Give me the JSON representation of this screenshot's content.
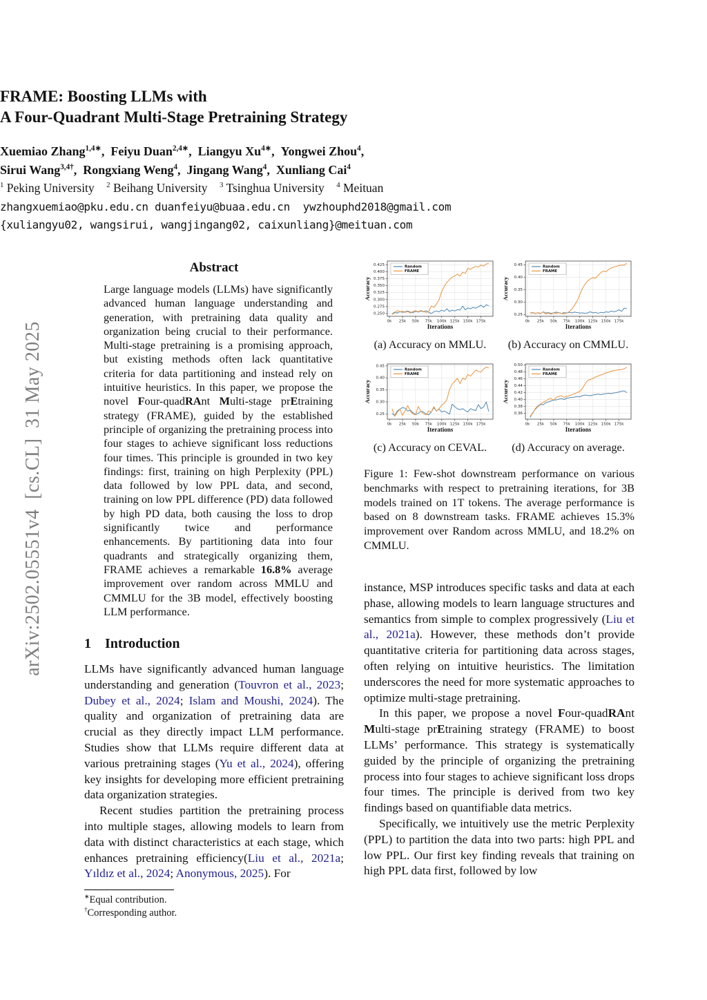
{
  "watermark": "arXiv:2502.05551v4 [cs.CL] 31 May 2025",
  "header": {
    "title_line1": "FRAME: Boosting LLMs with",
    "title_line2": "A Four-Quadrant Multi-Stage Pretraining Strategy",
    "authors_line1": [
      {
        "t": "Xuemiao Zhang"
      },
      {
        "t": "1,4∗",
        "c": "sup"
      },
      {
        "t": ", "
      },
      {
        "t": "Feiyu Duan"
      },
      {
        "t": "2,4∗",
        "c": "sup"
      },
      {
        "t": ", "
      },
      {
        "t": "Liangyu Xu"
      },
      {
        "t": "4∗",
        "c": "sup"
      },
      {
        "t": ", "
      },
      {
        "t": "Yongwei Zhou"
      },
      {
        "t": "4",
        "c": "sup"
      },
      {
        "t": ","
      }
    ],
    "authors_line2": [
      {
        "t": "Sirui Wang"
      },
      {
        "t": "3,4†",
        "c": "sup"
      },
      {
        "t": ", "
      },
      {
        "t": "Rongxiang Weng"
      },
      {
        "t": "4",
        "c": "sup"
      },
      {
        "t": ", "
      },
      {
        "t": "Jingang Wang"
      },
      {
        "t": "4",
        "c": "sup"
      },
      {
        "t": ", "
      },
      {
        "t": "Xunliang Cai"
      },
      {
        "t": "4",
        "c": "sup"
      }
    ],
    "affiliations": [
      {
        "t": "1",
        "c": "sup"
      },
      {
        "t": " Peking University  "
      },
      {
        "t": "2",
        "c": "sup"
      },
      {
        "t": " Beihang University  "
      },
      {
        "t": "3",
        "c": "sup"
      },
      {
        "t": " Tsinghua University  "
      },
      {
        "t": "4",
        "c": "sup"
      },
      {
        "t": " Meituan"
      }
    ],
    "emails_line1": "zhangxuemiao@pku.edu.cn duanfeiyu@buaa.edu.cn  ywzhouphd2018@gmail.com",
    "emails_line2": "{xuliangyu02, wangsirui, wangjingang02, caixunliang}@meituan.com"
  },
  "abstract": {
    "heading": "Abstract",
    "body": [
      {
        "t": "Large language models (LLMs) have significantly advanced human language understanding and generation, with pretraining data quality and organization being crucial to their performance. Multi-stage pretraining is a promising approach, but existing methods often lack quantitative criteria for data partitioning and instead rely on intuitive heuristics. In this paper, we propose the novel "
      },
      {
        "t": "F",
        "c": "b"
      },
      {
        "t": "our-quad"
      },
      {
        "t": "RA",
        "c": "b"
      },
      {
        "t": "nt "
      },
      {
        "t": "M",
        "c": "b"
      },
      {
        "t": "ulti-stage pr"
      },
      {
        "t": "E",
        "c": "b"
      },
      {
        "t": "training strategy (FRAME), guided by the established principle of organizing the pretraining process into four stages to achieve significant loss reductions four times. This principle is grounded in two key findings: first, training on high Perplexity (PPL) data followed by low PPL data, and second, training on low PPL difference (PD) data followed by high PD data, both causing the loss to drop significantly twice and performance enhancements. By partitioning data into four quadrants and strategically organizing them, FRAME achieves a remarkable "
      },
      {
        "t": "16.8%",
        "c": "b"
      },
      {
        "t": " average improvement over random across MMLU and CMMLU for the 3B model, effectively boosting LLM performance."
      }
    ]
  },
  "introduction": {
    "heading": [
      {
        "t": "1"
      },
      {
        "t": "  "
      },
      {
        "t": "Introduction"
      }
    ],
    "p1": [
      {
        "t": "LLMs have significantly advanced human language understanding and generation ("
      },
      {
        "t": "Touvron et al., 2023",
        "c": "link"
      },
      {
        "t": "; "
      },
      {
        "t": "Dubey et al., 2024",
        "c": "link"
      },
      {
        "t": "; "
      },
      {
        "t": "Islam and Moushi, 2024",
        "c": "link"
      },
      {
        "t": "). The quality and organization of pretraining data are crucial as they directly impact LLM performance. Studies show that LLMs require different data at various pretraining stages ("
      },
      {
        "t": "Yu et al., 2024",
        "c": "link"
      },
      {
        "t": "), offering key insights for developing more efficient pretraining data organization strategies."
      }
    ],
    "p2": [
      {
        "t": "Recent studies partition the pretraining process into multiple stages, allowing models to learn from data with distinct characteristics at each stage, which enhances pretraining efficiency("
      },
      {
        "t": "Liu et al., 2021a",
        "c": "link"
      },
      {
        "t": "; "
      },
      {
        "t": "Yıldız et al., 2024",
        "c": "link"
      },
      {
        "t": "; "
      },
      {
        "t": "Anonymous, 2025",
        "c": "link"
      },
      {
        "t": "). For"
      }
    ]
  },
  "footnotes": [
    [
      {
        "t": "∗",
        "c": "sup"
      },
      {
        "t": "Equal contribution."
      }
    ],
    [
      {
        "t": "†",
        "c": "sup"
      },
      {
        "t": "Corresponding author."
      }
    ]
  ],
  "figure1": {
    "caption": "Figure 1: Few-shot downstream performance on various benchmarks with respect to pretraining iterations, for 3B models trained on 1T tokens. The average performance is based on 8 downstream tasks.  FRAME achieves 15.3% improvement over Random across MMLU, and 18.2% on CMMLU."
  },
  "right_column": {
    "p1": [
      {
        "t": "instance, MSP introduces specific tasks and data at each phase, allowing models to learn language structures and semantics from simple to complex progressively ("
      },
      {
        "t": "Liu et al., 2021a",
        "c": "link"
      },
      {
        "t": ").  However, these methods don’t provide quantitative criteria for partitioning data across stages, often relying on intuitive heuristics.  The limitation underscores the need for more systematic approaches to optimize multi-stage pretraining."
      }
    ],
    "p2": [
      {
        "t": "In this paper, we propose a novel "
      },
      {
        "t": "F",
        "c": "b"
      },
      {
        "t": "our-quad"
      },
      {
        "t": "RA",
        "c": "b"
      },
      {
        "t": "nt "
      },
      {
        "t": "M",
        "c": "b"
      },
      {
        "t": "ulti-stage pr"
      },
      {
        "t": "E",
        "c": "b"
      },
      {
        "t": "training strategy (FRAME) to boost LLMs’ performance.  This strategy is systematically guided by the principle of organizing the pretraining process into four stages to achieve significant loss drops four times. The principle is derived from two key findings based on quantifiable data metrics."
      }
    ],
    "p3": [
      {
        "t": "Specifically, we intuitively use the metric Perplexity (PPL) to partition the data into two parts: high PPL and low PPL. Our first key finding reveals that training on high PPL data first, followed by low"
      }
    ]
  },
  "chart_data": [
    {
      "id": "a",
      "type": "line",
      "caption": "(a) Accuracy on MMLU.",
      "xlabel": "Iterations",
      "ylabel": "Accuracy",
      "xlim": [
        -4,
        198
      ],
      "ylim": [
        0.24,
        0.438
      ],
      "xticks": [
        0,
        25,
        50,
        75,
        100,
        125,
        150,
        175
      ],
      "xtick_labels": [
        "0k",
        "25k",
        "50k",
        "75k",
        "100k",
        "125k",
        "150k",
        "175k"
      ],
      "yticks": [
        0.25,
        0.275,
        0.3,
        0.325,
        0.35,
        0.375,
        0.4,
        0.425
      ],
      "ytick_labels": [
        "0.250",
        "0.275",
        "0.300",
        "0.325",
        "0.350",
        "0.375",
        "0.400",
        "0.425"
      ],
      "x": [
        5,
        10,
        15,
        20,
        25,
        30,
        35,
        40,
        45,
        50,
        55,
        60,
        65,
        70,
        75,
        80,
        85,
        90,
        95,
        100,
        105,
        110,
        115,
        120,
        125,
        130,
        135,
        140,
        145,
        150,
        155,
        160,
        165,
        170,
        175,
        180,
        185,
        190
      ],
      "series": [
        {
          "name": "Random",
          "color": "#4e87b2",
          "values": [
            0.248,
            0.255,
            0.252,
            0.257,
            0.254,
            0.256,
            0.259,
            0.255,
            0.253,
            0.258,
            0.255,
            0.259,
            0.256,
            0.26,
            0.255,
            0.25,
            0.256,
            0.259,
            0.256,
            0.262,
            0.258,
            0.267,
            0.257,
            0.262,
            0.259,
            0.264,
            0.262,
            0.277,
            0.263,
            0.27,
            0.267,
            0.272,
            0.269,
            0.274,
            0.28,
            0.272,
            0.281,
            0.278
          ]
        },
        {
          "name": "FRAME",
          "color": "#e9953f",
          "values": [
            0.247,
            0.252,
            0.261,
            0.255,
            0.259,
            0.254,
            0.257,
            0.252,
            0.257,
            0.26,
            0.256,
            0.261,
            0.257,
            0.254,
            0.256,
            0.277,
            0.272,
            0.284,
            0.3,
            0.329,
            0.348,
            0.362,
            0.372,
            0.38,
            0.385,
            0.391,
            0.384,
            0.398,
            0.394,
            0.412,
            0.408,
            0.415,
            0.419,
            0.416,
            0.424,
            0.42,
            0.427,
            0.43
          ]
        }
      ]
    },
    {
      "id": "b",
      "type": "line",
      "caption": "(b) Accuracy on CMMLU.",
      "xlabel": "Iterations",
      "ylabel": "Accuracy",
      "xlim": [
        -4,
        198
      ],
      "ylim": [
        0.243,
        0.465
      ],
      "xticks": [
        0,
        25,
        50,
        75,
        100,
        125,
        150,
        175
      ],
      "xtick_labels": [
        "0k",
        "25k",
        "50k",
        "75k",
        "100k",
        "125k",
        "150k",
        "175k"
      ],
      "yticks": [
        0.25,
        0.3,
        0.35,
        0.4,
        0.45
      ],
      "ytick_labels": [
        "0.25",
        "0.30",
        "0.35",
        "0.40",
        "0.45"
      ],
      "x": [
        5,
        10,
        15,
        20,
        25,
        30,
        35,
        40,
        45,
        50,
        55,
        60,
        65,
        70,
        75,
        80,
        85,
        90,
        95,
        100,
        105,
        110,
        115,
        120,
        125,
        130,
        135,
        140,
        145,
        150,
        155,
        160,
        165,
        170,
        175,
        180,
        185,
        190
      ],
      "series": [
        {
          "name": "Random",
          "color": "#4e87b2",
          "values": [
            0.257,
            0.258,
            0.255,
            0.257,
            0.254,
            0.261,
            0.256,
            0.258,
            0.255,
            0.257,
            0.26,
            0.257,
            0.255,
            0.258,
            0.256,
            0.259,
            0.257,
            0.26,
            0.258,
            0.256,
            0.257,
            0.255,
            0.257,
            0.261,
            0.257,
            0.259,
            0.255,
            0.259,
            0.257,
            0.261,
            0.259,
            0.264,
            0.261,
            0.264,
            0.269,
            0.263,
            0.276,
            0.273
          ]
        },
        {
          "name": "FRAME",
          "color": "#e9953f",
          "values": [
            0.256,
            0.257,
            0.254,
            0.258,
            0.255,
            0.26,
            0.253,
            0.256,
            0.252,
            0.257,
            0.254,
            0.258,
            0.255,
            0.253,
            0.256,
            0.262,
            0.272,
            0.288,
            0.305,
            0.33,
            0.355,
            0.372,
            0.385,
            0.393,
            0.398,
            0.396,
            0.407,
            0.418,
            0.425,
            0.422,
            0.431,
            0.437,
            0.441,
            0.444,
            0.447,
            0.449,
            0.448,
            0.457
          ]
        }
      ]
    },
    {
      "id": "c",
      "type": "line",
      "caption": "(c) Accuracy on CEVAL.",
      "xlabel": "Iterations",
      "ylabel": "Accuracy",
      "xlim": [
        -4,
        198
      ],
      "ylim": [
        0.228,
        0.458
      ],
      "xticks": [
        0,
        25,
        50,
        75,
        100,
        125,
        150,
        175
      ],
      "xtick_labels": [
        "0k",
        "25k",
        "50k",
        "75k",
        "100k",
        "125k",
        "150k",
        "175k"
      ],
      "yticks": [
        0.25,
        0.3,
        0.35,
        0.4,
        0.45
      ],
      "ytick_labels": [
        "0.25",
        "0.30",
        "0.35",
        "0.40",
        "0.45"
      ],
      "x": [
        5,
        10,
        15,
        20,
        25,
        30,
        35,
        40,
        45,
        50,
        55,
        60,
        65,
        70,
        75,
        80,
        85,
        90,
        95,
        100,
        105,
        110,
        115,
        120,
        125,
        130,
        135,
        140,
        145,
        150,
        155,
        160,
        165,
        170,
        175,
        180,
        185,
        190
      ],
      "series": [
        {
          "name": "Random",
          "color": "#4e87b2",
          "values": [
            0.252,
            0.243,
            0.262,
            0.27,
            0.277,
            0.273,
            0.262,
            0.266,
            0.255,
            0.248,
            0.252,
            0.261,
            0.258,
            0.25,
            0.246,
            0.258,
            0.276,
            0.262,
            0.27,
            0.258,
            0.262,
            0.256,
            0.249,
            0.291,
            0.28,
            0.271,
            0.268,
            0.272,
            0.264,
            0.258,
            0.272,
            0.267,
            0.264,
            0.289,
            0.272,
            0.279,
            0.3,
            0.26
          ]
        },
        {
          "name": "FRAME",
          "color": "#e9953f",
          "values": [
            0.272,
            0.24,
            0.256,
            0.27,
            0.244,
            0.263,
            0.285,
            0.261,
            0.249,
            0.246,
            0.281,
            0.262,
            0.251,
            0.246,
            0.262,
            0.258,
            0.28,
            0.262,
            0.272,
            0.287,
            0.295,
            0.31,
            0.352,
            0.374,
            0.386,
            0.398,
            0.376,
            0.399,
            0.393,
            0.414,
            0.407,
            0.42,
            0.432,
            0.427,
            0.424,
            0.437,
            0.445,
            0.441
          ]
        }
      ]
    },
    {
      "id": "d",
      "type": "line",
      "caption": "(d) Accuracy on average.",
      "xlabel": "Iterations",
      "ylabel": "Accuracy",
      "xlim": [
        -4,
        198
      ],
      "ylim": [
        0.343,
        0.503
      ],
      "xticks": [
        0,
        25,
        50,
        75,
        100,
        125,
        150,
        175
      ],
      "xtick_labels": [
        "0k",
        "25k",
        "50k",
        "75k",
        "100k",
        "125k",
        "150k",
        "175k"
      ],
      "yticks": [
        0.36,
        0.38,
        0.4,
        0.42,
        0.44,
        0.46,
        0.48,
        0.5
      ],
      "ytick_labels": [
        "0.36",
        "0.38",
        "0.40",
        "0.42",
        "0.44",
        "0.46",
        "0.48",
        "0.50"
      ],
      "x": [
        5,
        10,
        15,
        20,
        25,
        30,
        35,
        40,
        45,
        50,
        55,
        60,
        65,
        70,
        75,
        80,
        85,
        90,
        95,
        100,
        105,
        110,
        115,
        120,
        125,
        130,
        135,
        140,
        145,
        150,
        155,
        160,
        165,
        170,
        175,
        180,
        185,
        190
      ],
      "series": [
        {
          "name": "Random",
          "color": "#4e87b2",
          "values": [
            0.348,
            0.362,
            0.372,
            0.38,
            0.386,
            0.385,
            0.391,
            0.393,
            0.396,
            0.398,
            0.399,
            0.401,
            0.403,
            0.4,
            0.404,
            0.405,
            0.406,
            0.407,
            0.409,
            0.408,
            0.411,
            0.413,
            0.412,
            0.411,
            0.413,
            0.414,
            0.416,
            0.414,
            0.416,
            0.417,
            0.418,
            0.417,
            0.419,
            0.42,
            0.422,
            0.424,
            0.425,
            0.42
          ]
        },
        {
          "name": "FRAME",
          "color": "#e9953f",
          "values": [
            0.352,
            0.36,
            0.374,
            0.382,
            0.387,
            0.392,
            0.396,
            0.401,
            0.403,
            0.398,
            0.406,
            0.409,
            0.411,
            0.406,
            0.409,
            0.411,
            0.414,
            0.417,
            0.42,
            0.424,
            0.432,
            0.445,
            0.455,
            0.458,
            0.461,
            0.465,
            0.468,
            0.471,
            0.474,
            0.477,
            0.479,
            0.482,
            0.484,
            0.485,
            0.486,
            0.487,
            0.489,
            0.494
          ]
        }
      ]
    }
  ]
}
